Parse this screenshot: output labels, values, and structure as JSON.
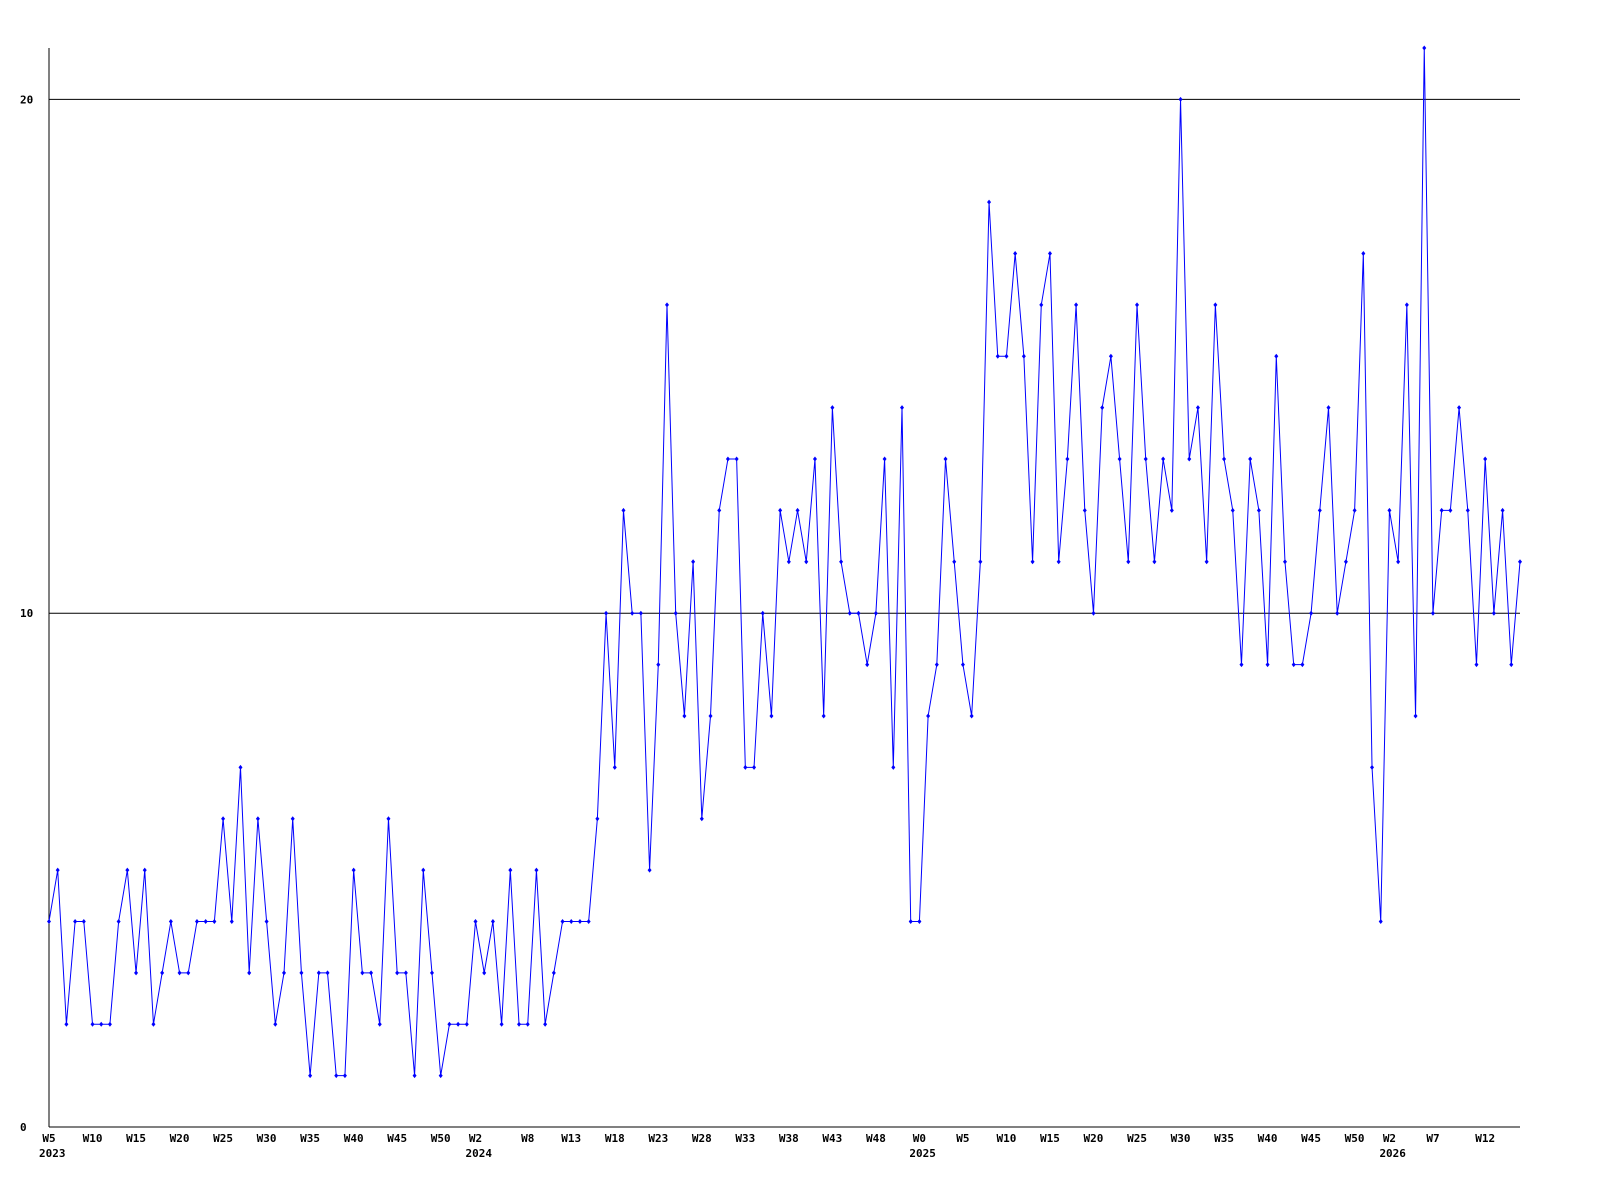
{
  "chart_data": {
    "type": "line",
    "categories": [
      "W5",
      null,
      null,
      null,
      null,
      "W10",
      null,
      null,
      null,
      null,
      "W15",
      null,
      null,
      null,
      null,
      "W20",
      null,
      null,
      null,
      null,
      "W25",
      null,
      null,
      null,
      null,
      "W30",
      null,
      null,
      null,
      null,
      "W35",
      null,
      null,
      null,
      null,
      "W40",
      null,
      null,
      null,
      null,
      "W45",
      null,
      null,
      null,
      null,
      "W50",
      null,
      null,
      null,
      "W2",
      null,
      null,
      null,
      null,
      null,
      "W8",
      null,
      null,
      null,
      null,
      "W13",
      null,
      null,
      null,
      null,
      "W18",
      null,
      null,
      null,
      null,
      "W23",
      null,
      null,
      null,
      null,
      "W28",
      null,
      null,
      null,
      null,
      "W33",
      null,
      null,
      null,
      null,
      "W38",
      null,
      null,
      null,
      null,
      "W43",
      null,
      null,
      null,
      null,
      "W48",
      null,
      null,
      null,
      null,
      "W0",
      null,
      null,
      null,
      null,
      "W5",
      null,
      null,
      null,
      null,
      "W10",
      null,
      null,
      null,
      null,
      "W15",
      null,
      null,
      null,
      null,
      "W20",
      null,
      null,
      null,
      null,
      "W25",
      null,
      null,
      null,
      null,
      "W30",
      null,
      null,
      null,
      null,
      "W35",
      null,
      null,
      null,
      null,
      "W40",
      null,
      null,
      null,
      null,
      "W45",
      null,
      null,
      null,
      null,
      "W50",
      null,
      null,
      null,
      "W2",
      null,
      null,
      null,
      null,
      "W7",
      null,
      null,
      null,
      null,
      null,
      "W12",
      null,
      null,
      null,
      null
    ],
    "category_years": [
      "2023",
      null,
      null,
      null,
      null,
      null,
      null,
      null,
      null,
      null,
      null,
      null,
      null,
      null,
      null,
      null,
      null,
      null,
      null,
      null,
      null,
      null,
      null,
      null,
      null,
      null,
      null,
      null,
      null,
      null,
      null,
      null,
      null,
      null,
      null,
      null,
      null,
      null,
      null,
      null,
      null,
      null,
      null,
      null,
      null,
      null,
      null,
      null,
      null,
      "2024",
      null,
      null,
      null,
      null,
      null,
      null,
      null,
      null,
      null,
      null,
      null,
      null,
      null,
      null,
      null,
      null,
      null,
      null,
      null,
      null,
      null,
      null,
      null,
      null,
      null,
      null,
      null,
      null,
      null,
      null,
      null,
      null,
      null,
      null,
      null,
      null,
      null,
      null,
      null,
      null,
      null,
      null,
      null,
      null,
      null,
      null,
      null,
      null,
      null,
      null,
      "2025",
      null,
      null,
      null,
      null,
      null,
      null,
      null,
      null,
      null,
      null,
      null,
      null,
      null,
      null,
      null,
      null,
      null,
      null,
      null,
      null,
      null,
      null,
      null,
      null,
      null,
      null,
      null,
      null,
      null,
      null,
      null,
      null,
      null,
      null,
      null,
      null,
      null,
      null,
      null,
      null,
      null,
      null,
      null,
      null,
      null,
      null,
      null,
      null,
      null,
      null,
      null,
      null,
      null,
      "2026",
      null,
      null,
      null,
      null,
      null,
      null,
      null,
      null,
      null,
      null,
      null,
      null,
      null,
      null,
      null
    ],
    "values": [
      4,
      5,
      2,
      4,
      4,
      2,
      2,
      2,
      4,
      5,
      3,
      5,
      2,
      3,
      4,
      3,
      3,
      4,
      4,
      4,
      6,
      4,
      7,
      3,
      6,
      4,
      2,
      3,
      6,
      3,
      1,
      3,
      3,
      1,
      1,
      5,
      3,
      3,
      2,
      6,
      3,
      3,
      1,
      5,
      3,
      1,
      2,
      2,
      2,
      4,
      3,
      4,
      2,
      5,
      2,
      2,
      5,
      2,
      3,
      4,
      4,
      4,
      4,
      6,
      10,
      7,
      12,
      10,
      10,
      5,
      9,
      16,
      10,
      8,
      11,
      6,
      8,
      12,
      13,
      13,
      7,
      7,
      10,
      8,
      12,
      11,
      12,
      11,
      13,
      8,
      14,
      11,
      10,
      10,
      9,
      10,
      13,
      7,
      14,
      4,
      4,
      8,
      9,
      13,
      11,
      9,
      8,
      11,
      18,
      15,
      15,
      17,
      15,
      11,
      16,
      17,
      11,
      13,
      16,
      12,
      10,
      14,
      15,
      13,
      11,
      16,
      13,
      11,
      13,
      12,
      20,
      13,
      14,
      11,
      16,
      13,
      12,
      9,
      13,
      12,
      9,
      15,
      11,
      9,
      9,
      10,
      12,
      14,
      10,
      11,
      12,
      17,
      7,
      4,
      12,
      11,
      16,
      8,
      21,
      10,
      12,
      12,
      14,
      12,
      9,
      13,
      10,
      12,
      9,
      11
    ],
    "color": "#0000ff",
    "ylim": [
      0,
      21
    ],
    "yticks": [
      0,
      10,
      20
    ],
    "grid": true
  }
}
